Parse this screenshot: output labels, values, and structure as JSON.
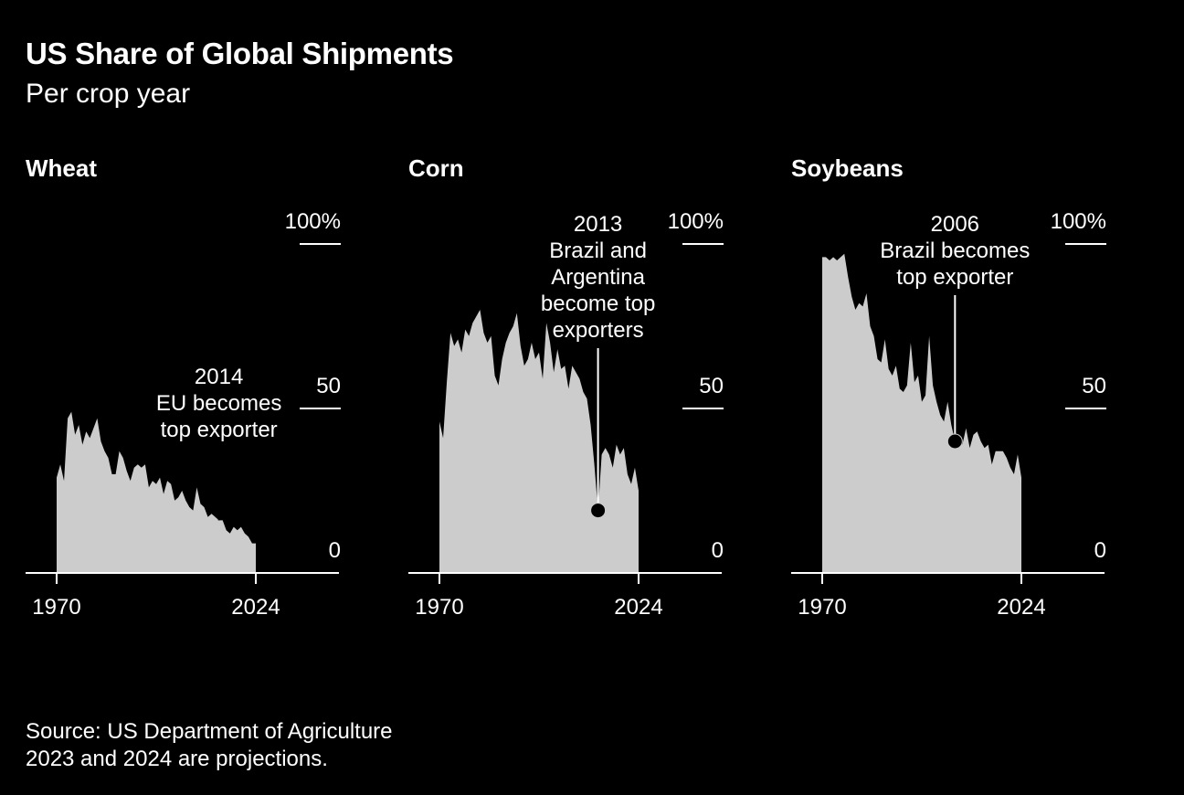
{
  "header": {
    "title": "US Share of Global Shipments",
    "subtitle": "Per crop year"
  },
  "footer": {
    "source": "Source: US Department of Agriculture",
    "note": "2023 and 2024 are projections."
  },
  "chart_data": [
    {
      "type": "area",
      "title": "Wheat",
      "x_start": 1970,
      "x_end": 2024,
      "ylim": [
        0,
        100
      ],
      "y_ticks": [
        "100%",
        "50",
        "0"
      ],
      "x_ticks": [
        "1970",
        "2024"
      ],
      "x": [
        1970,
        1971,
        1972,
        1973,
        1974,
        1975,
        1976,
        1977,
        1978,
        1979,
        1980,
        1981,
        1982,
        1983,
        1984,
        1985,
        1986,
        1987,
        1988,
        1989,
        1990,
        1991,
        1992,
        1993,
        1994,
        1995,
        1996,
        1997,
        1998,
        1999,
        2000,
        2001,
        2002,
        2003,
        2004,
        2005,
        2006,
        2007,
        2008,
        2009,
        2010,
        2011,
        2012,
        2013,
        2014,
        2015,
        2016,
        2017,
        2018,
        2019,
        2020,
        2021,
        2022,
        2023,
        2024
      ],
      "values": [
        29,
        33,
        28,
        47,
        49,
        42,
        45,
        39,
        43,
        41,
        44,
        47,
        40,
        37,
        35,
        30,
        30,
        37,
        35,
        31,
        28,
        32,
        33,
        32,
        33,
        26,
        28,
        27,
        29,
        24,
        28,
        27,
        22,
        23,
        25,
        22,
        20,
        19,
        26,
        21,
        20,
        17,
        18,
        17,
        16,
        16,
        13,
        12,
        14,
        13,
        14,
        12,
        11,
        9,
        9
      ],
      "annotation": {
        "year": 2014,
        "value": 16,
        "lines": [
          "2014",
          "EU becomes",
          "top exporter"
        ],
        "marker": false
      }
    },
    {
      "type": "area",
      "title": "Corn",
      "x_start": 1970,
      "x_end": 2024,
      "ylim": [
        0,
        100
      ],
      "y_ticks": [
        "100%",
        "50",
        "0"
      ],
      "x_ticks": [
        "1970",
        "2024"
      ],
      "x": [
        1970,
        1971,
        1972,
        1973,
        1974,
        1975,
        1976,
        1977,
        1978,
        1979,
        1980,
        1981,
        1982,
        1983,
        1984,
        1985,
        1986,
        1987,
        1988,
        1989,
        1990,
        1991,
        1992,
        1993,
        1994,
        1995,
        1996,
        1997,
        1998,
        1999,
        2000,
        2001,
        2002,
        2003,
        2004,
        2005,
        2006,
        2007,
        2008,
        2009,
        2010,
        2011,
        2012,
        2013,
        2014,
        2015,
        2016,
        2017,
        2018,
        2019,
        2020,
        2021,
        2022,
        2023,
        2024
      ],
      "values": [
        46,
        41,
        58,
        73,
        69,
        71,
        67,
        74,
        72,
        76,
        78,
        80,
        73,
        70,
        72,
        60,
        57,
        65,
        70,
        73,
        75,
        79,
        69,
        63,
        65,
        70,
        65,
        67,
        59,
        76,
        70,
        61,
        68,
        62,
        63,
        56,
        63,
        61,
        59,
        55,
        53,
        45,
        33,
        19,
        36,
        38,
        36,
        32,
        39,
        36,
        38,
        30,
        27,
        32,
        25
      ],
      "annotation": {
        "year": 2013,
        "value": 19,
        "lines": [
          "2013",
          "Brazil and",
          "Argentina",
          "become top",
          "exporters"
        ],
        "marker": true
      }
    },
    {
      "type": "area",
      "title": "Soybeans",
      "x_start": 1970,
      "x_end": 2024,
      "ylim": [
        0,
        100
      ],
      "y_ticks": [
        "100%",
        "50",
        "0"
      ],
      "x_ticks": [
        "1970",
        "2024"
      ],
      "x": [
        1970,
        1971,
        1972,
        1973,
        1974,
        1975,
        1976,
        1977,
        1978,
        1979,
        1980,
        1981,
        1982,
        1983,
        1984,
        1985,
        1986,
        1987,
        1988,
        1989,
        1990,
        1991,
        1992,
        1993,
        1994,
        1995,
        1996,
        1997,
        1998,
        1999,
        2000,
        2001,
        2002,
        2003,
        2004,
        2005,
        2006,
        2007,
        2008,
        2009,
        2010,
        2011,
        2012,
        2013,
        2014,
        2015,
        2016,
        2017,
        2018,
        2019,
        2020,
        2021,
        2022,
        2023,
        2024
      ],
      "values": [
        96,
        96,
        95,
        96,
        95,
        96,
        97,
        90,
        84,
        80,
        82,
        81,
        85,
        75,
        72,
        65,
        64,
        71,
        62,
        60,
        63,
        56,
        55,
        57,
        70,
        58,
        60,
        52,
        54,
        72,
        57,
        52,
        48,
        46,
        52,
        45,
        40,
        42,
        39,
        44,
        38,
        42,
        43,
        40,
        38,
        39,
        33,
        37,
        37,
        37,
        35,
        32,
        30,
        36,
        29
      ],
      "annotation": {
        "year": 2006,
        "value": 40,
        "lines": [
          "2006",
          "Brazil becomes",
          "top exporter"
        ],
        "marker": true
      }
    }
  ]
}
